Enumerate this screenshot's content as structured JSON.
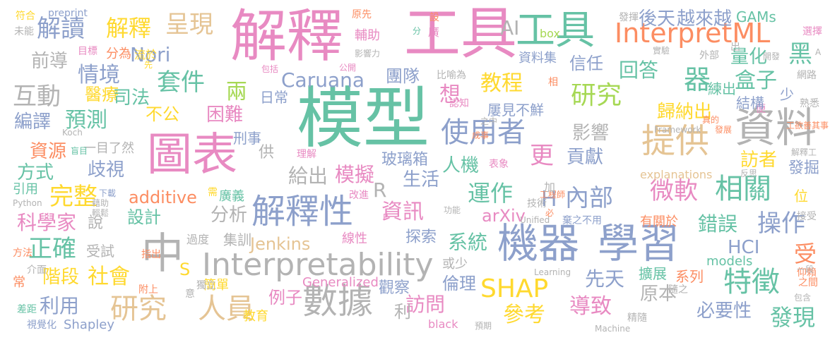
{
  "palette": {
    "pink": "#e88ac2",
    "green": "#66c2a5",
    "blue": "#8da0cb",
    "orange": "#fc8d62",
    "yellow": "#ffd92f",
    "lime": "#a6d854",
    "tan": "#e5c494",
    "gray": "#b3b3b3"
  },
  "words": [
    {
      "text": "解釋",
      "color": "pink"
    },
    {
      "text": "工具",
      "color": "pink"
    },
    {
      "text": "工具",
      "color": "green"
    },
    {
      "text": "模型",
      "color": "green"
    },
    {
      "text": "圖表",
      "color": "pink"
    },
    {
      "text": "機器",
      "color": "blue"
    },
    {
      "text": "學習",
      "color": "blue"
    },
    {
      "text": "資料",
      "color": "gray"
    },
    {
      "text": "解釋性",
      "color": "blue"
    },
    {
      "text": "Interpretability",
      "color": "gray"
    },
    {
      "text": "InterpretML",
      "color": "orange"
    },
    {
      "text": "數據",
      "color": "gray"
    },
    {
      "text": "SHAP",
      "color": "yellow"
    },
    {
      "text": "中",
      "color": "gray"
    },
    {
      "text": "提供",
      "color": "tan"
    },
    {
      "text": "使用者",
      "color": "blue"
    },
    {
      "text": "研究",
      "color": "tan"
    },
    {
      "text": "人員",
      "color": "tan"
    },
    {
      "text": "研究",
      "color": "lime"
    },
    {
      "text": "特徵",
      "color": "green"
    },
    {
      "text": "相關",
      "color": "green"
    },
    {
      "text": "解讀",
      "color": "blue"
    },
    {
      "text": "解釋",
      "color": "yellow"
    },
    {
      "text": "呈現",
      "color": "tan"
    },
    {
      "text": "套件",
      "color": "green"
    },
    {
      "text": "AI",
      "color": "gray"
    },
    {
      "text": "Nori",
      "color": "blue"
    },
    {
      "text": "Caruana",
      "color": "blue"
    },
    {
      "text": "Jenkins",
      "color": "tan"
    },
    {
      "text": "arXiv",
      "color": "pink"
    },
    {
      "text": "additive",
      "color": "orange"
    },
    {
      "text": "資訊",
      "color": "pink"
    },
    {
      "text": "內部",
      "color": "blue"
    },
    {
      "text": "微軟",
      "color": "pink"
    },
    {
      "text": "操作",
      "color": "blue"
    },
    {
      "text": "運作",
      "color": "green"
    },
    {
      "text": "教程",
      "color": "yellow"
    },
    {
      "text": "團隊",
      "color": "blue"
    },
    {
      "text": "模擬",
      "color": "pink"
    },
    {
      "text": "給出",
      "color": "gray"
    },
    {
      "text": "預測",
      "color": "green"
    },
    {
      "text": "互動",
      "color": "gray"
    },
    {
      "text": "情境",
      "color": "blue"
    },
    {
      "text": "前導",
      "color": "gray"
    },
    {
      "text": "完整",
      "color": "yellow"
    },
    {
      "text": "正確",
      "color": "green"
    },
    {
      "text": "方式",
      "color": "green"
    },
    {
      "text": "資源",
      "color": "orange"
    },
    {
      "text": "歧視",
      "color": "blue"
    },
    {
      "text": "編譯",
      "color": "blue"
    },
    {
      "text": "科學家",
      "color": "pink"
    },
    {
      "text": "階段",
      "color": "yellow"
    },
    {
      "text": "社會",
      "color": "yellow"
    },
    {
      "text": "利用",
      "color": "blue"
    },
    {
      "text": "醫療",
      "color": "yellow"
    },
    {
      "text": "司法",
      "color": "green"
    },
    {
      "text": "兩",
      "color": "lime"
    },
    {
      "text": "困難",
      "color": "pink"
    },
    {
      "text": "不公",
      "color": "yellow"
    },
    {
      "text": "設計",
      "color": "green"
    },
    {
      "text": "分析",
      "color": "gray"
    },
    {
      "text": "生活",
      "color": "blue"
    },
    {
      "text": "系統",
      "color": "green"
    },
    {
      "text": "人機",
      "color": "green"
    },
    {
      "text": "HCI",
      "color": "blue"
    },
    {
      "text": "錯誤",
      "color": "green"
    },
    {
      "text": "量化",
      "color": "green"
    },
    {
      "text": "回答",
      "color": "green"
    },
    {
      "text": "信任",
      "color": "blue"
    },
    {
      "text": "歸納出",
      "color": "yellow"
    },
    {
      "text": "影響",
      "color": "gray"
    },
    {
      "text": "貢獻",
      "color": "blue"
    },
    {
      "text": "訪者",
      "color": "yellow"
    },
    {
      "text": "發掘",
      "color": "blue"
    },
    {
      "text": "發現",
      "color": "green"
    },
    {
      "text": "必要性",
      "color": "blue"
    },
    {
      "text": "原本",
      "color": "gray"
    },
    {
      "text": "導致",
      "color": "pink"
    },
    {
      "text": "參考",
      "color": "yellow"
    },
    {
      "text": "先天",
      "color": "blue"
    },
    {
      "text": "訪問",
      "color": "pink"
    },
    {
      "text": "例子",
      "color": "pink"
    },
    {
      "text": "倫理",
      "color": "blue"
    },
    {
      "text": "觀察",
      "color": "blue"
    },
    {
      "text": "探索",
      "color": "blue"
    },
    {
      "text": "玻璃箱",
      "color": "blue"
    },
    {
      "text": "更",
      "color": "pink"
    },
    {
      "text": "想",
      "color": "pink"
    },
    {
      "text": "屢見不鮮",
      "color": "blue"
    },
    {
      "text": "GAMs",
      "color": "green"
    },
    {
      "text": "後天",
      "color": "blue"
    },
    {
      "text": "越來越",
      "color": "blue"
    },
    {
      "text": "盒子",
      "color": "green"
    },
    {
      "text": "黑",
      "color": "green"
    },
    {
      "text": "器",
      "color": "green"
    },
    {
      "text": "受",
      "color": "orange"
    },
    {
      "text": "位",
      "color": "yellow"
    },
    {
      "text": "擴展",
      "color": "green"
    },
    {
      "text": "系列",
      "color": "orange"
    },
    {
      "text": "models",
      "color": "green"
    },
    {
      "text": "Generalized",
      "color": "pink"
    },
    {
      "text": "Shapley",
      "color": "blue"
    },
    {
      "text": "black",
      "color": "pink"
    },
    {
      "text": "R",
      "color": "gray"
    },
    {
      "text": "S",
      "color": "yellow"
    },
    {
      "text": "H",
      "color": "blue"
    },
    {
      "text": "受試",
      "color": "gray"
    },
    {
      "text": "集訓",
      "color": "gray"
    },
    {
      "text": "過度",
      "color": "gray"
    },
    {
      "text": "簡單",
      "color": "yellow"
    },
    {
      "text": "教育",
      "color": "yellow"
    },
    {
      "text": "刑事",
      "color": "blue"
    },
    {
      "text": "日常",
      "color": "blue"
    },
    {
      "text": "一目了然",
      "color": "gray"
    },
    {
      "text": "廣義",
      "color": "green"
    },
    {
      "text": "線性",
      "color": "pink"
    },
    {
      "text": "供",
      "color": "gray"
    },
    {
      "text": "說",
      "color": "gray"
    },
    {
      "text": "利",
      "color": "gray"
    },
    {
      "text": "或少",
      "color": "gray"
    },
    {
      "text": "資料集",
      "color": "blue"
    },
    {
      "text": "輔助",
      "color": "pink"
    },
    {
      "text": "分為",
      "color": "orange"
    },
    {
      "text": "流於",
      "color": "yellow"
    },
    {
      "text": "目標",
      "color": "pink"
    },
    {
      "text": "引用",
      "color": "green"
    },
    {
      "text": "常",
      "color": "orange"
    },
    {
      "text": "介面",
      "color": "gray"
    },
    {
      "text": "方法",
      "color": "orange"
    },
    {
      "text": "差距",
      "color": "green"
    },
    {
      "text": "視覺化",
      "color": "blue"
    },
    {
      "text": "解釋工",
      "color": "gray"
    },
    {
      "text": "explanations",
      "color": "tan"
    },
    {
      "text": "box",
      "color": "lime"
    },
    {
      "text": "Framework",
      "color": "gray"
    },
    {
      "text": "Unified",
      "color": "gray"
    },
    {
      "text": "Learning",
      "color": "gray"
    },
    {
      "text": "Machine",
      "color": "gray"
    },
    {
      "text": "Python",
      "color": "gray"
    },
    {
      "text": "Koch",
      "color": "gray"
    },
    {
      "text": "preprint",
      "color": "blue"
    },
    {
      "text": "符合",
      "color": "yellow"
    },
    {
      "text": "未能",
      "color": "gray"
    },
    {
      "text": "原先",
      "color": "orange"
    },
    {
      "text": "發揮",
      "color": "gray"
    },
    {
      "text": "選擇",
      "color": "pink"
    },
    {
      "text": "網路",
      "color": "gray"
    },
    {
      "text": "熟悉",
      "color": "gray"
    },
    {
      "text": "接受",
      "color": "gray"
    },
    {
      "text": "仰賴",
      "color": "orange"
    },
    {
      "text": "一段",
      "color": "gray"
    },
    {
      "text": "之間",
      "color": "orange"
    },
    {
      "text": "包含",
      "color": "gray"
    },
    {
      "text": "工欲善其事",
      "color": "orange"
    },
    {
      "text": "反思",
      "color": "gray"
    },
    {
      "text": "便",
      "color": "pink"
    },
    {
      "text": "發展",
      "color": "orange"
    },
    {
      "text": "真的",
      "color": "orange"
    },
    {
      "text": "結構",
      "color": "blue"
    },
    {
      "text": "少",
      "color": "blue"
    },
    {
      "text": "練出",
      "color": "green"
    },
    {
      "text": "外部",
      "color": "gray"
    },
    {
      "text": "出",
      "color": "gray"
    },
    {
      "text": "實驗",
      "color": "gray"
    },
    {
      "text": "開發",
      "color": "gray"
    },
    {
      "text": "工程師",
      "color": "orange"
    },
    {
      "text": "加",
      "color": "gray"
    },
    {
      "text": "技術",
      "color": "gray"
    },
    {
      "text": "棄之不用",
      "color": "blue"
    },
    {
      "text": "有關於",
      "color": "orange"
    },
    {
      "text": "隨之",
      "color": "gray"
    },
    {
      "text": "精隨",
      "color": "gray"
    },
    {
      "text": "預期",
      "color": "gray"
    },
    {
      "text": "附上",
      "color": "orange"
    },
    {
      "text": "獨立",
      "color": "gray"
    },
    {
      "text": "意",
      "color": "gray"
    },
    {
      "text": "指出",
      "color": "orange"
    },
    {
      "text": "下載",
      "color": "blue"
    },
    {
      "text": "藉助",
      "color": "gray"
    },
    {
      "text": "輕鬆",
      "color": "gray"
    },
    {
      "text": "需",
      "color": "yellow"
    },
    {
      "text": "改進",
      "color": "pink"
    },
    {
      "text": "功能",
      "color": "gray"
    },
    {
      "text": "表象",
      "color": "pink"
    },
    {
      "text": "成事",
      "color": "orange"
    },
    {
      "text": "理解",
      "color": "pink"
    },
    {
      "text": "盲目",
      "color": "green"
    },
    {
      "text": "認知",
      "color": "pink"
    },
    {
      "text": "之中",
      "color": "gray"
    },
    {
      "text": "比喻為",
      "color": "gray"
    },
    {
      "text": "相",
      "color": "orange"
    },
    {
      "text": "影響力",
      "color": "gray"
    },
    {
      "text": "公開",
      "color": "pink"
    },
    {
      "text": "包括",
      "color": "pink"
    },
    {
      "text": "先",
      "color": "yellow"
    },
    {
      "text": "設",
      "color": "orange"
    },
    {
      "text": "分",
      "color": "green"
    },
    {
      "text": "廣",
      "color": "pink"
    },
    {
      "text": "必",
      "color": "orange"
    },
    {
      "text": "P",
      "color": "pink"
    },
    {
      "text": "A",
      "color": "gray"
    }
  ]
}
